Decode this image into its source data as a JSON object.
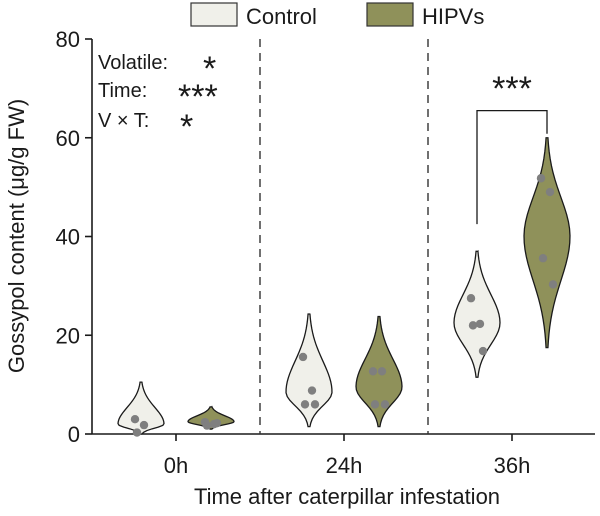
{
  "chart_data": {
    "type": "violin",
    "ylabel": "Gossypol content (μg/g FW)",
    "xlabel": "Time after caterpillar infestation",
    "ylim": [
      0,
      80
    ],
    "yticks": [
      0,
      20,
      40,
      60,
      80
    ],
    "categories": [
      "0h",
      "24h",
      "36h"
    ],
    "series": [
      {
        "name": "Control",
        "color": "#f0f0ea",
        "groups": [
          {
            "points": [
              3.0,
              1.8,
              0.3
            ],
            "min": 0,
            "max": 10.5,
            "peak": 2.0
          },
          {
            "points": [
              15.6,
              8.8,
              6.0,
              6.0
            ],
            "min": 1.5,
            "max": 24.3,
            "peak": 8.5
          },
          {
            "points": [
              27.5,
              22.3,
              22.0,
              16.8
            ],
            "min": 11.5,
            "max": 37.0,
            "peak": 22.5
          }
        ]
      },
      {
        "name": "HIPVs",
        "color": "#8f915a",
        "groups": [
          {
            "points": [
              2.4,
              2.0,
              1.7,
              2.2
            ],
            "min": 1.0,
            "max": 5.5,
            "peak": 2.5
          },
          {
            "points": [
              12.7,
              12.7,
              6.0,
              6.0
            ],
            "min": 1.5,
            "max": 23.8,
            "peak": 9.5
          },
          {
            "points": [
              51.8,
              49.0,
              35.6,
              30.3
            ],
            "min": 17.5,
            "max": 60.0,
            "peak": 40.0
          }
        ]
      }
    ],
    "annotations": {
      "stats": [
        {
          "label": "Volatile:",
          "stars": "*"
        },
        {
          "label": "Time:",
          "stars": "***"
        },
        {
          "label": "V × T:",
          "stars": "*"
        }
      ],
      "significance": {
        "category": "36h",
        "stars": "***"
      }
    },
    "legend_position": "top",
    "grid": false
  }
}
